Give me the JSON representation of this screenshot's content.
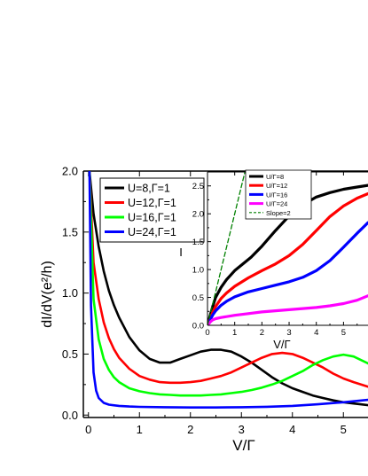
{
  "chart_data": [
    {
      "type": "line",
      "xlabel": "V/Γ",
      "ylabel": "dI/dV(e²/h)",
      "xlim": [
        -0.1,
        5.5
      ],
      "ylim": [
        -0.02,
        2.0
      ],
      "xticks": [
        "0",
        "1",
        "2",
        "3",
        "4",
        "5"
      ],
      "yticks": [
        "0.0",
        "0.5",
        "1.0",
        "1.5",
        "2.0"
      ],
      "legend": "top-left",
      "grid": false,
      "series": [
        {
          "name": "U=8,Γ=1",
          "color": "#000000",
          "x": [
            0.02,
            0.1,
            0.2,
            0.3,
            0.4,
            0.5,
            0.6,
            0.8,
            1.0,
            1.2,
            1.4,
            1.6,
            1.8,
            2.0,
            2.2,
            2.4,
            2.6,
            2.8,
            3.0,
            3.2,
            3.4,
            3.6,
            3.8,
            4.0,
            4.2,
            4.4,
            4.6,
            4.8,
            5.0,
            5.2,
            5.5
          ],
          "y": [
            2.0,
            1.65,
            1.38,
            1.18,
            1.02,
            0.9,
            0.8,
            0.64,
            0.53,
            0.46,
            0.43,
            0.43,
            0.46,
            0.49,
            0.52,
            0.535,
            0.535,
            0.52,
            0.48,
            0.43,
            0.37,
            0.31,
            0.26,
            0.22,
            0.19,
            0.16,
            0.14,
            0.12,
            0.105,
            0.095,
            0.08
          ]
        },
        {
          "name": "U=12,Γ=1",
          "color": "#ff0000",
          "x": [
            0.02,
            0.1,
            0.2,
            0.3,
            0.4,
            0.5,
            0.6,
            0.8,
            1.0,
            1.2,
            1.4,
            1.6,
            1.8,
            2.0,
            2.2,
            2.4,
            2.6,
            2.8,
            3.0,
            3.2,
            3.4,
            3.6,
            3.8,
            4.0,
            4.2,
            4.4,
            4.6,
            4.8,
            5.0,
            5.2,
            5.5
          ],
          "y": [
            2.0,
            1.25,
            0.95,
            0.76,
            0.63,
            0.54,
            0.47,
            0.38,
            0.32,
            0.29,
            0.27,
            0.265,
            0.265,
            0.27,
            0.28,
            0.3,
            0.32,
            0.35,
            0.39,
            0.43,
            0.47,
            0.5,
            0.51,
            0.5,
            0.47,
            0.43,
            0.39,
            0.34,
            0.3,
            0.27,
            0.23
          ]
        },
        {
          "name": "U=16,Γ=1",
          "color": "#00ff00",
          "x": [
            0.02,
            0.1,
            0.2,
            0.3,
            0.4,
            0.5,
            0.6,
            0.8,
            1.0,
            1.2,
            1.4,
            1.6,
            1.8,
            2.0,
            2.2,
            2.4,
            2.6,
            2.8,
            3.0,
            3.2,
            3.4,
            3.6,
            3.8,
            4.0,
            4.2,
            4.4,
            4.6,
            4.8,
            5.0,
            5.2,
            5.5
          ],
          "y": [
            2.0,
            0.95,
            0.62,
            0.46,
            0.37,
            0.31,
            0.27,
            0.22,
            0.195,
            0.18,
            0.17,
            0.165,
            0.16,
            0.16,
            0.16,
            0.165,
            0.17,
            0.18,
            0.19,
            0.205,
            0.225,
            0.25,
            0.28,
            0.32,
            0.36,
            0.41,
            0.45,
            0.48,
            0.495,
            0.48,
            0.42
          ]
        },
        {
          "name": "U=24,Γ=1",
          "color": "#0000ff",
          "x": [
            0.02,
            0.05,
            0.1,
            0.15,
            0.2,
            0.3,
            0.4,
            0.6,
            0.8,
            1.0,
            1.5,
            2.0,
            2.5,
            3.0,
            3.5,
            4.0,
            4.5,
            5.0,
            5.5
          ],
          "y": [
            2.0,
            0.9,
            0.35,
            0.2,
            0.14,
            0.1,
            0.085,
            0.075,
            0.07,
            0.067,
            0.064,
            0.062,
            0.062,
            0.064,
            0.068,
            0.075,
            0.088,
            0.105,
            0.125
          ]
        }
      ]
    },
    {
      "type": "line",
      "xlabel": "V/Γ",
      "ylabel": "I",
      "xlim": [
        0,
        5.9
      ],
      "ylim": [
        0,
        2.75
      ],
      "xticks": [
        "0",
        "1",
        "2",
        "3",
        "4",
        "5"
      ],
      "yticks": [
        "0.0",
        "0.5",
        "1.0",
        "1.5",
        "2.0",
        "2.5"
      ],
      "legend": "top-left",
      "grid": false,
      "series": [
        {
          "name": "U/Γ=8",
          "color": "#000000",
          "style": "solid",
          "x": [
            0,
            0.1,
            0.2,
            0.3,
            0.5,
            0.7,
            1.0,
            1.3,
            1.6,
            2.0,
            2.5,
            3.0,
            3.5,
            4.0,
            4.5,
            5.0,
            5.5,
            5.9
          ],
          "y": [
            0,
            0.18,
            0.35,
            0.5,
            0.68,
            0.82,
            0.98,
            1.1,
            1.22,
            1.42,
            1.7,
            1.96,
            2.16,
            2.3,
            2.38,
            2.44,
            2.48,
            2.51
          ]
        },
        {
          "name": "U/Γ=12",
          "color": "#ff0000",
          "style": "solid",
          "x": [
            0,
            0.1,
            0.2,
            0.3,
            0.5,
            0.7,
            1.0,
            1.5,
            2.0,
            2.5,
            3.0,
            3.5,
            4.0,
            4.5,
            5.0,
            5.5,
            5.9
          ],
          "y": [
            0,
            0.12,
            0.24,
            0.34,
            0.48,
            0.58,
            0.7,
            0.85,
            0.98,
            1.1,
            1.25,
            1.45,
            1.7,
            1.95,
            2.14,
            2.28,
            2.36
          ]
        },
        {
          "name": "U/Γ=16",
          "color": "#0000ff",
          "style": "solid",
          "x": [
            0,
            0.1,
            0.2,
            0.3,
            0.5,
            0.7,
            1.0,
            1.5,
            2.0,
            2.5,
            3.0,
            3.5,
            4.0,
            4.5,
            5.0,
            5.5,
            5.9
          ],
          "y": [
            0,
            0.1,
            0.19,
            0.26,
            0.36,
            0.43,
            0.51,
            0.6,
            0.66,
            0.72,
            0.78,
            0.86,
            0.98,
            1.16,
            1.4,
            1.65,
            1.84
          ]
        },
        {
          "name": "U/Γ=24",
          "color": "#ff00ff",
          "style": "solid",
          "x": [
            0,
            0.1,
            0.2,
            0.3,
            0.5,
            1.0,
            1.5,
            2.0,
            2.5,
            3.0,
            3.5,
            4.0,
            4.5,
            5.0,
            5.5,
            5.9
          ],
          "y": [
            0,
            0.06,
            0.1,
            0.12,
            0.14,
            0.18,
            0.21,
            0.24,
            0.26,
            0.28,
            0.3,
            0.32,
            0.35,
            0.39,
            0.45,
            0.53
          ]
        },
        {
          "name": "Slope=2",
          "color": "#008000",
          "style": "dashed",
          "x": [
            0,
            1.375
          ],
          "y": [
            0,
            2.75
          ]
        }
      ]
    }
  ]
}
